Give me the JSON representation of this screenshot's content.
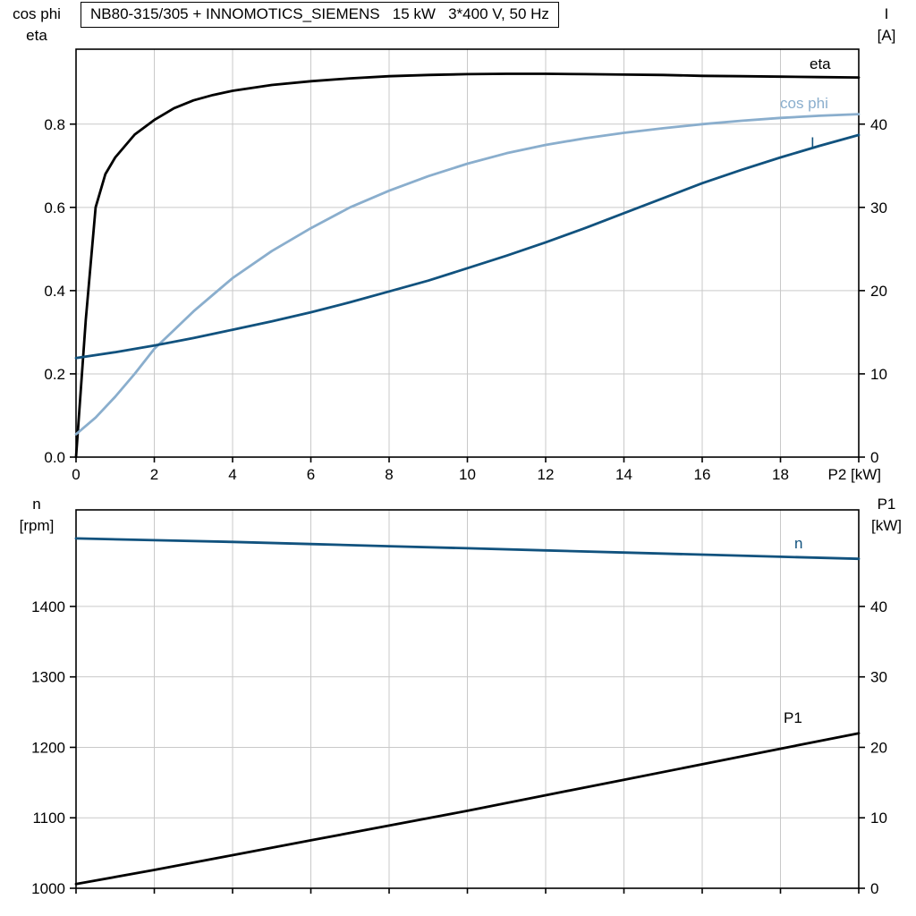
{
  "title": "NB80-315/305 + INNOMOTICS_SIEMENS   15 kW   3*400 V, 50 Hz",
  "colors": {
    "black": "#000000",
    "light_blue": "#8aaecd",
    "dark_blue": "#11527e",
    "grid": "#c9c9c9",
    "axis": "#000000"
  },
  "chart_data": [
    {
      "type": "line",
      "xlabel": "P2 [kW]",
      "xlim": [
        0,
        20
      ],
      "grid": true,
      "xticks": [
        {
          "v": 0,
          "label": "0"
        },
        {
          "v": 2,
          "label": "2"
        },
        {
          "v": 4,
          "label": "4"
        },
        {
          "v": 6,
          "label": "6"
        },
        {
          "v": 8,
          "label": "8"
        },
        {
          "v": 10,
          "label": "10"
        },
        {
          "v": 12,
          "label": "12"
        },
        {
          "v": 14,
          "label": "14"
        },
        {
          "v": 16,
          "label": "16"
        },
        {
          "v": 18,
          "label": "18"
        },
        {
          "v": 20,
          "label": ""
        }
      ],
      "left_axis": {
        "title_lines": [
          "cos phi",
          "eta"
        ],
        "lim": [
          0,
          0.98
        ],
        "ticks": [
          {
            "v": 0.0,
            "label": "0.0"
          },
          {
            "v": 0.2,
            "label": "0.2"
          },
          {
            "v": 0.4,
            "label": "0.4"
          },
          {
            "v": 0.6,
            "label": "0.6"
          },
          {
            "v": 0.8,
            "label": "0.8"
          }
        ]
      },
      "right_axis": {
        "title_lines": [
          "I",
          "[A]"
        ],
        "lim": [
          0,
          49
        ],
        "ticks": [
          {
            "v": 0,
            "label": "0"
          },
          {
            "v": 10,
            "label": "10"
          },
          {
            "v": 20,
            "label": "20"
          },
          {
            "v": 30,
            "label": "30"
          },
          {
            "v": 40,
            "label": "40"
          }
        ]
      },
      "series": [
        {
          "name": "eta",
          "label": "eta",
          "axis": "left",
          "color": "#000000",
          "x": [
            0,
            0.25,
            0.5,
            0.75,
            1,
            1.5,
            2,
            2.5,
            3,
            3.5,
            4,
            5,
            6,
            7,
            8,
            9,
            10,
            11,
            12,
            13,
            14,
            15,
            16,
            17,
            18,
            19,
            20
          ],
          "y": [
            0,
            0.33,
            0.6,
            0.68,
            0.72,
            0.775,
            0.81,
            0.838,
            0.857,
            0.87,
            0.88,
            0.894,
            0.903,
            0.91,
            0.915,
            0.918,
            0.92,
            0.921,
            0.921,
            0.92,
            0.919,
            0.918,
            0.916,
            0.915,
            0.914,
            0.913,
            0.912
          ]
        },
        {
          "name": "cos phi",
          "label": "cos phi",
          "axis": "left",
          "color": "#8aaecd",
          "x": [
            0,
            0.5,
            1,
            1.5,
            2,
            2.5,
            3,
            3.5,
            4,
            5,
            6,
            7,
            8,
            9,
            10,
            11,
            12,
            13,
            14,
            15,
            16,
            17,
            18,
            19,
            20
          ],
          "y": [
            0.055,
            0.095,
            0.145,
            0.2,
            0.26,
            0.305,
            0.35,
            0.39,
            0.43,
            0.495,
            0.55,
            0.6,
            0.64,
            0.675,
            0.705,
            0.73,
            0.75,
            0.766,
            0.779,
            0.79,
            0.8,
            0.808,
            0.815,
            0.82,
            0.824
          ]
        },
        {
          "name": "I",
          "label": "I",
          "axis": "right",
          "color": "#11527e",
          "x": [
            0,
            1,
            2,
            3,
            4,
            5,
            6,
            7,
            8,
            9,
            10,
            11,
            12,
            13,
            14,
            15,
            16,
            17,
            18,
            19,
            20
          ],
          "y": [
            11.9,
            12.6,
            13.4,
            14.3,
            15.3,
            16.3,
            17.4,
            18.6,
            19.9,
            21.2,
            22.7,
            24.2,
            25.8,
            27.5,
            29.3,
            31.1,
            32.9,
            34.5,
            36.0,
            37.4,
            38.7
          ]
        }
      ]
    },
    {
      "type": "line",
      "xlabel": "",
      "xlim": [
        0,
        20
      ],
      "grid": true,
      "xticks": [
        {
          "v": 0,
          "label": ""
        },
        {
          "v": 2,
          "label": ""
        },
        {
          "v": 4,
          "label": ""
        },
        {
          "v": 6,
          "label": ""
        },
        {
          "v": 8,
          "label": ""
        },
        {
          "v": 10,
          "label": ""
        },
        {
          "v": 12,
          "label": ""
        },
        {
          "v": 14,
          "label": ""
        },
        {
          "v": 16,
          "label": ""
        },
        {
          "v": 18,
          "label": ""
        },
        {
          "v": 20,
          "label": ""
        }
      ],
      "left_axis": {
        "title_lines": [
          "n",
          "[rpm]"
        ],
        "lim": [
          1000,
          1537
        ],
        "ticks": [
          {
            "v": 1000,
            "label": "1000"
          },
          {
            "v": 1100,
            "label": "1100"
          },
          {
            "v": 1200,
            "label": "1200"
          },
          {
            "v": 1300,
            "label": "1300"
          },
          {
            "v": 1400,
            "label": "1400"
          }
        ]
      },
      "right_axis": {
        "title_lines": [
          "P1",
          "[kW]"
        ],
        "lim": [
          0,
          53.7
        ],
        "ticks": [
          {
            "v": 0,
            "label": "0"
          },
          {
            "v": 10,
            "label": "10"
          },
          {
            "v": 20,
            "label": "20"
          },
          {
            "v": 30,
            "label": "30"
          },
          {
            "v": 40,
            "label": "40"
          }
        ]
      },
      "series": [
        {
          "name": "n",
          "label": "n",
          "axis": "left",
          "color": "#11527e",
          "x": [
            0,
            2,
            4,
            6,
            8,
            10,
            12,
            14,
            16,
            18,
            20
          ],
          "y": [
            1496.5,
            1494,
            1491.5,
            1488.5,
            1485.5,
            1482.5,
            1479.5,
            1476.5,
            1473.5,
            1470.5,
            1467.5
          ]
        },
        {
          "name": "P1",
          "label": "P1",
          "axis": "right",
          "color": "#000000",
          "x": [
            0,
            2,
            4,
            6,
            8,
            10,
            12,
            14,
            16,
            18,
            20
          ],
          "y": [
            0.6,
            2.6,
            4.7,
            6.8,
            8.9,
            11.0,
            13.2,
            15.4,
            17.6,
            19.8,
            22.0
          ]
        }
      ]
    }
  ]
}
